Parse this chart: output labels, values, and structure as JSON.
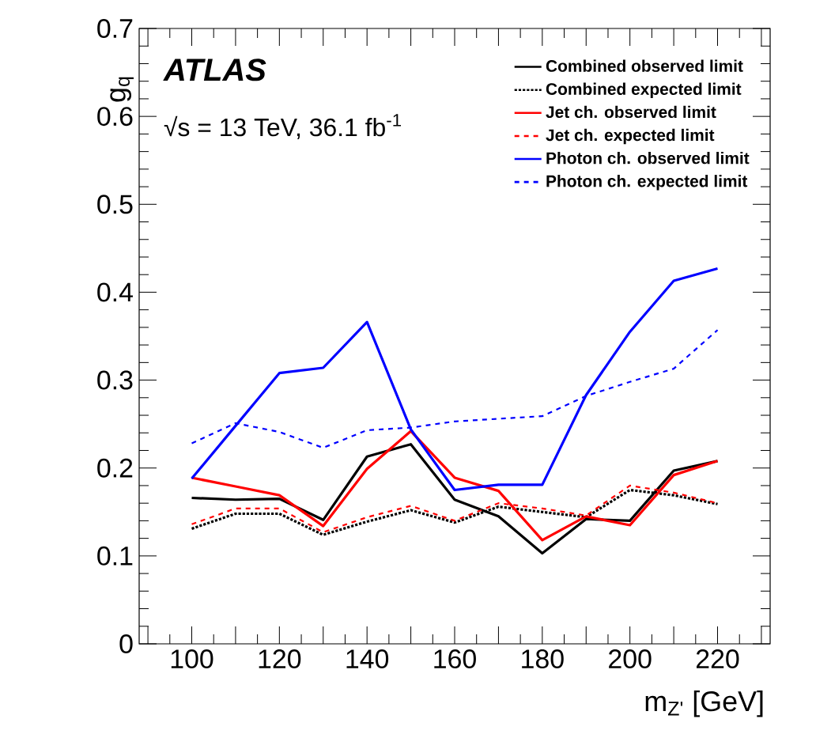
{
  "chart_data": {
    "type": "line",
    "xlabel": "m$_{Z'}$ [GeV]",
    "ylabel": "g$_{q}$",
    "annotations": [
      "ATLAS",
      "√s = 13 TeV, 36.1 fb$^{-1}$"
    ],
    "x": [
      100,
      110,
      120,
      130,
      140,
      150,
      160,
      170,
      180,
      190,
      200,
      210,
      220
    ],
    "series": [
      {
        "name": "Combined observed limit",
        "color": "#000000",
        "line_style": "solid",
        "values": [
          0.166,
          0.164,
          0.165,
          0.141,
          0.213,
          0.227,
          0.164,
          0.145,
          0.103,
          0.142,
          0.14,
          0.197,
          0.208
        ]
      },
      {
        "name": "Combined expected limit",
        "color": "#000000",
        "line_style": "dotted",
        "values": [
          0.131,
          0.148,
          0.148,
          0.124,
          0.139,
          0.152,
          0.138,
          0.156,
          0.15,
          0.144,
          0.175,
          0.169,
          0.159
        ]
      },
      {
        "name": "Jet ch. observed limit",
        "color": "#ff0000",
        "line_style": "solid",
        "values": [
          0.189,
          0.179,
          0.169,
          0.134,
          0.199,
          0.242,
          0.189,
          0.174,
          0.118,
          0.145,
          0.135,
          0.192,
          0.208
        ]
      },
      {
        "name": "Jet ch. expected limit",
        "color": "#ff0000",
        "line_style": "dashed",
        "values": [
          0.136,
          0.154,
          0.154,
          0.127,
          0.144,
          0.157,
          0.14,
          0.16,
          0.154,
          0.146,
          0.18,
          0.172,
          0.16
        ]
      },
      {
        "name": "Photon ch. observed limit",
        "color": "#0000ff",
        "line_style": "solid",
        "values": [
          0.188,
          0.248,
          0.308,
          0.314,
          0.366,
          0.244,
          0.175,
          0.181,
          0.181,
          0.283,
          0.355,
          0.413,
          0.427
        ]
      },
      {
        "name": "Photon ch. expected limit",
        "color": "#0000ff",
        "line_style": "dashed",
        "values": [
          0.228,
          0.251,
          0.241,
          0.223,
          0.243,
          0.246,
          0.253,
          0.256,
          0.259,
          0.282,
          0.298,
          0.313,
          0.357
        ]
      }
    ],
    "xlim": [
      88,
      232
    ],
    "ylim": [
      0,
      0.7
    ],
    "xticks": [
      {
        "value": 90,
        "label": null
      },
      100,
      {
        "value": 110,
        "label": null
      },
      120,
      {
        "value": 130,
        "label": null
      },
      140,
      {
        "value": 150,
        "label": null
      },
      160,
      {
        "value": 170,
        "label": null
      },
      180,
      {
        "value": 190,
        "label": null
      },
      200,
      {
        "value": 210,
        "label": null
      },
      220,
      {
        "value": 230,
        "label": null
      }
    ],
    "yticks": [
      0,
      0.1,
      0.2,
      0.3,
      0.4,
      0.5,
      0.6,
      0.7
    ],
    "legend": "top right",
    "grid": false,
    "marker": "none"
  }
}
